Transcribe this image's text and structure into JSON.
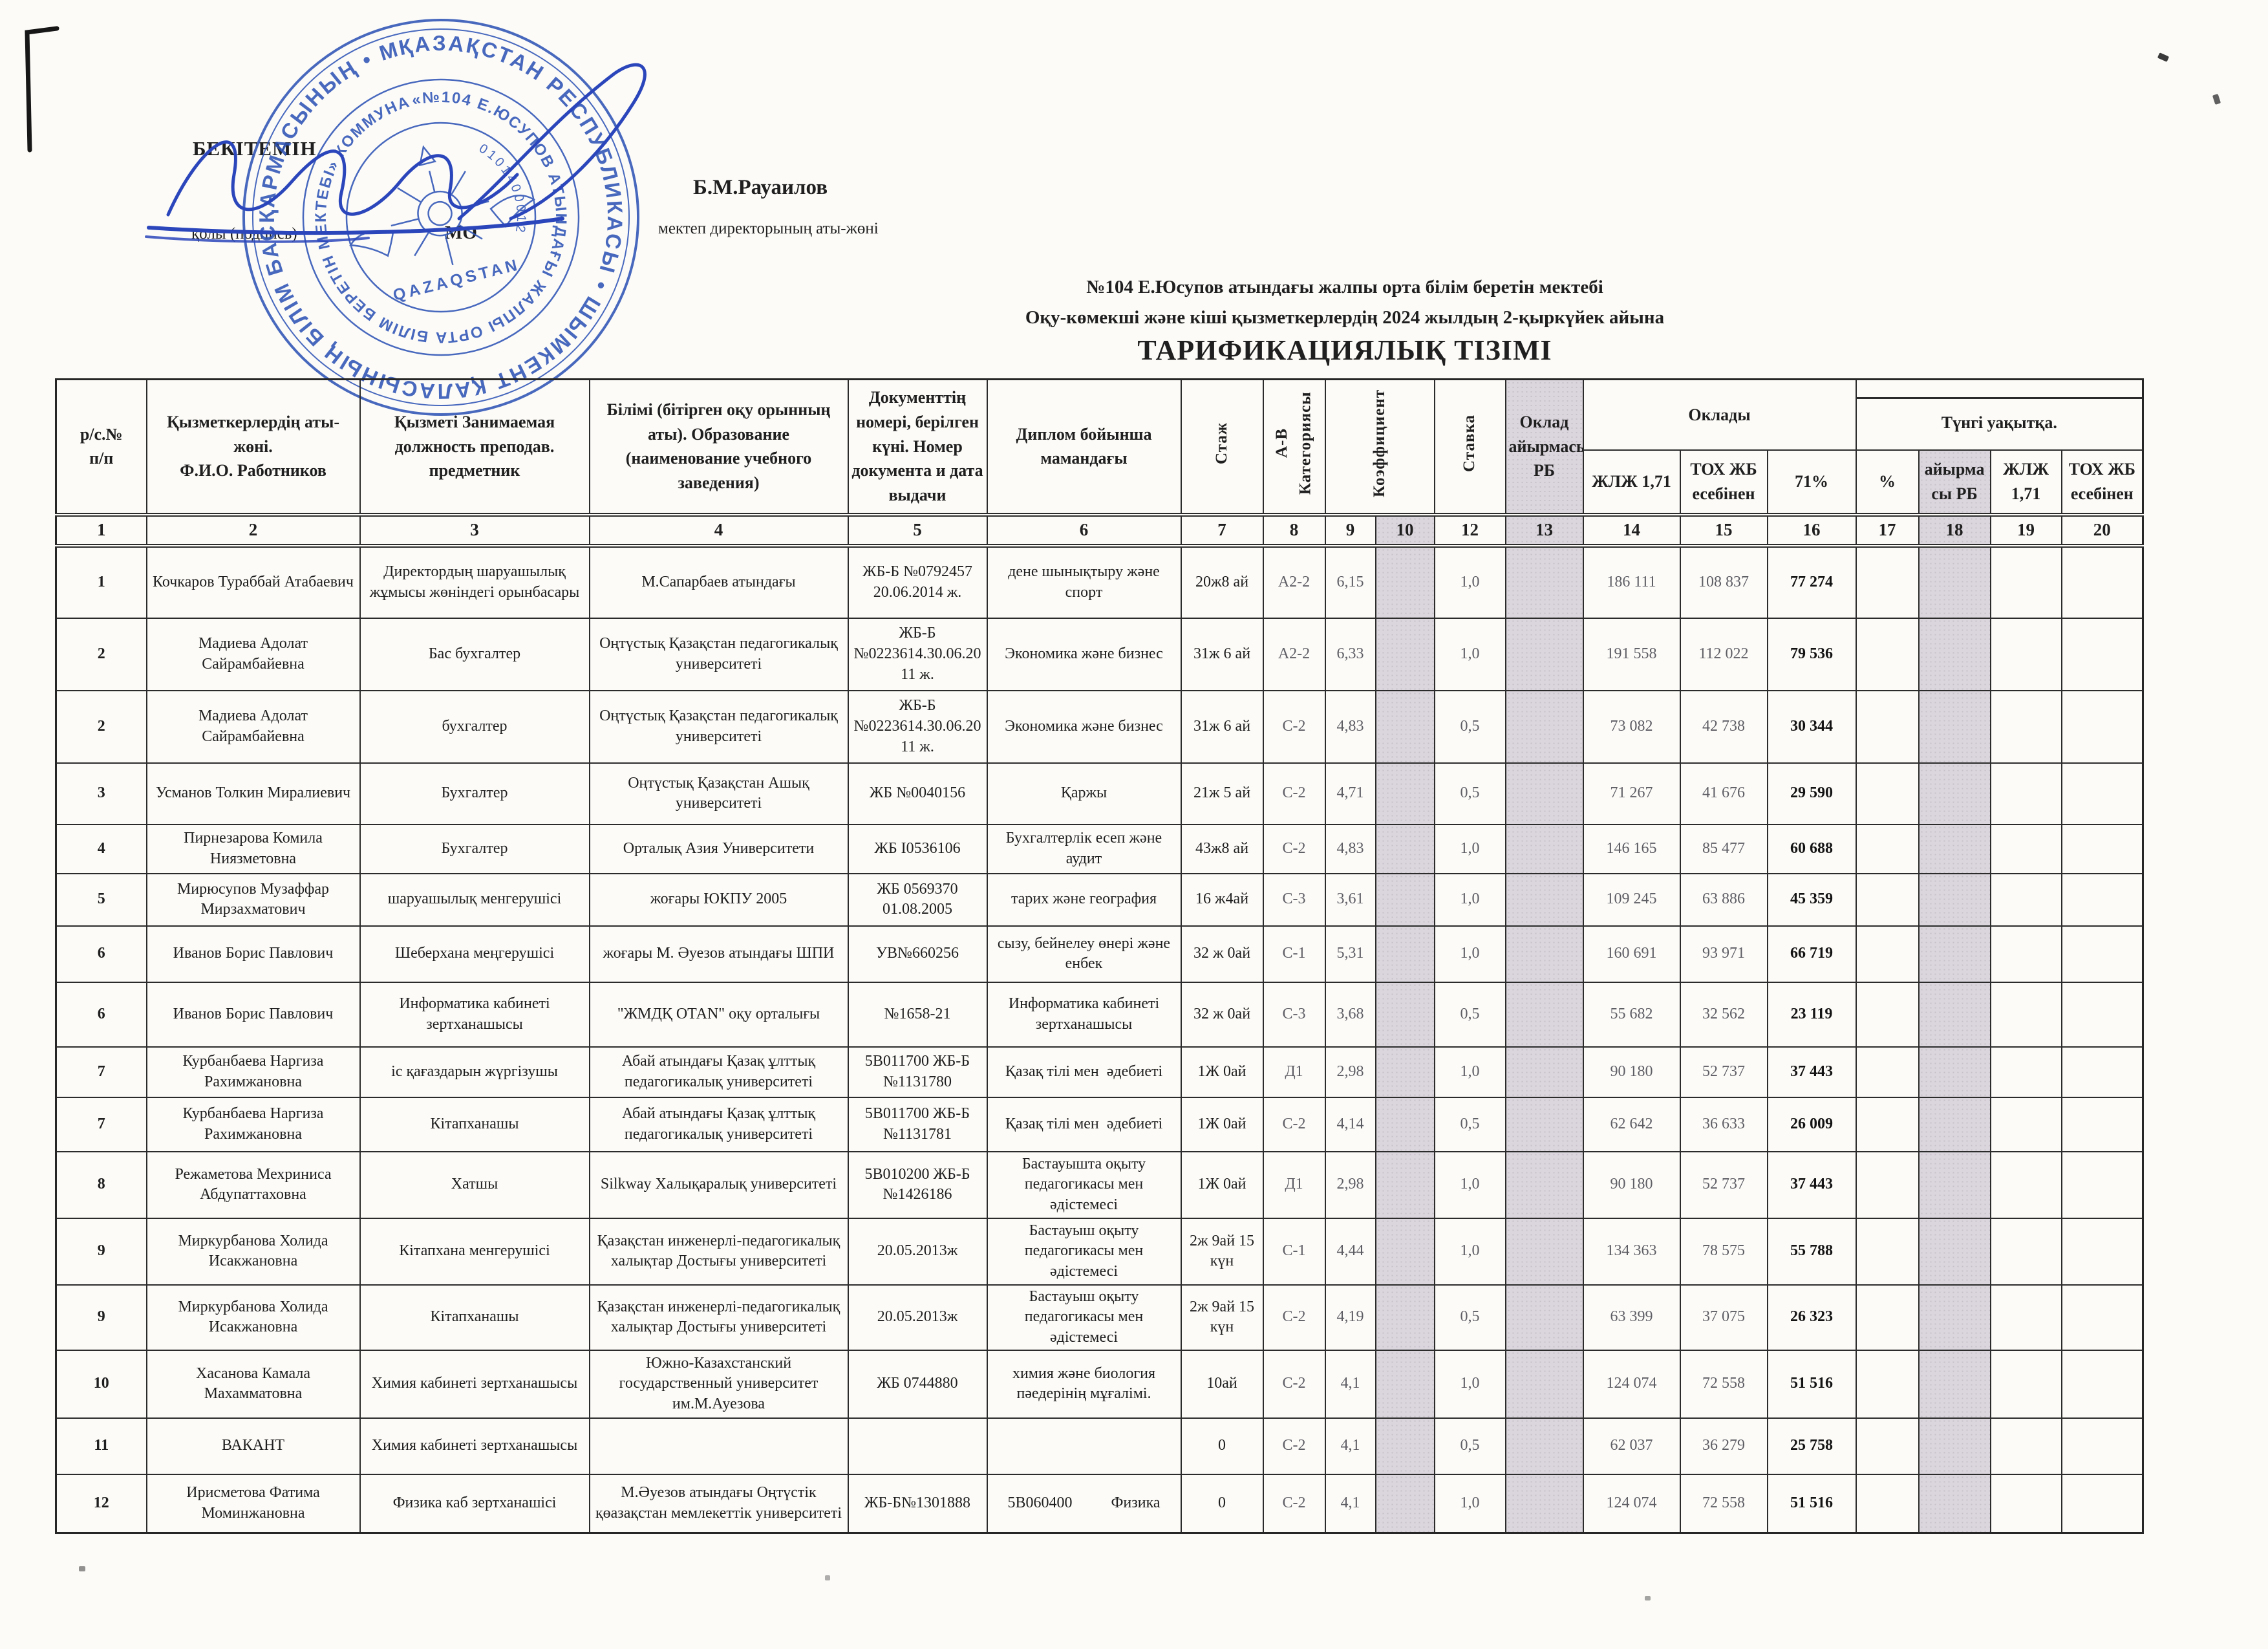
{
  "approval": {
    "approve_label": "БЕКІТЕМІН",
    "signature_caption": "қолы (подпись)",
    "stamp_caption": "МО",
    "director_name": "Б.М.Рауаилов",
    "director_caption": "мектеп директорының аты-жөні"
  },
  "stamp": {
    "color": "#2f54b5",
    "ring_text_outer": "ҚАЗАҚСТАН РЕСПУБЛИКАСЫ • ШЫМКЕНТ ҚАЛАСЫНЫҢ БІЛІМ БАСҚАРМАСЫНЫҢ • МЕМЛЕКЕТТІК МЕКЕМЕСІ •",
    "ring_text_inner": "«№104 Е.ЮСУПОВ АТЫНДАҒЫ ЖАЛПЫ ОРТА БІЛІМ БЕРЕТІН МЕКТЕБІ» КОММУНАЛДЫҚ МЕМЛЕКЕТТІК МЕКЕМЕСІ",
    "ring_number": "0101400012",
    "center_label": "QAZAQSTAN"
  },
  "title": {
    "line1": "№104 Е.Юсупов атындағы жалпы орта білім беретін мектебі",
    "line2": "Оқу-көмекші және кіші қызметкерлердің  2024 жылдың  2-қыркүйек  айына",
    "line3": "ТАРИФИКАЦИЯЛЫҚ ТІЗІМІ"
  },
  "table": {
    "headers": {
      "col1": "р/с.№\nп/п",
      "col2": "Қызметкерлердің аты-жөні.\nФ.И.О. Работников",
      "col3": "Қызметі Занимаемая должность преподав. предметник",
      "col4": "Білімі (бітірген оқу орынның аты). Образование (наименование учебного заведения)",
      "col5": "Документтің номері, берілген күні.  Номер документа  и дата выдачи",
      "col6": "Диплом бойынша мамандағы",
      "col7": "Стаж",
      "col8": "А-В Категориясы",
      "col9": "Коэффициент",
      "col12": "Ставка",
      "col13": "Оклад айырмасы РБ",
      "salary_group": "Оклады",
      "salary_sub_1": "ЖЛЖ 1,71",
      "salary_sub_2": "ТОХ  ЖБ есебінен",
      "salary_sub_3": "71%",
      "night_group": "Түнгі уақытқа.",
      "night_sub_1": "%",
      "night_sub_2": "айырма сы РБ",
      "night_sub_3": "ЖЛЖ 1,71",
      "night_sub_4": "ТОХ  ЖБ есебінен"
    },
    "column_numbers": [
      "1",
      "2",
      "3",
      "4",
      "5",
      "6",
      "7",
      "8",
      "9",
      "10",
      "12",
      "13",
      "14",
      "15",
      "16",
      "17",
      "18",
      "19",
      "20"
    ],
    "rows": [
      {
        "no": "1",
        "name": "Кочкаров Тураббай Атабаевич",
        "position": "Директордың шаруашылық жұмысы жөніндегі орынбасары",
        "education": "М.Сапарбаев атындағы",
        "document": "ЖБ-Б №0792457 20.06.2014 ж.",
        "diploma": "дене шынықтыру және спорт",
        "experience": "20ж8 ай",
        "category": "А2-2",
        "coefficient": "6,15",
        "c10": "",
        "rate": "1,0",
        "c13": "",
        "s14": "186 111",
        "s15": "108 837",
        "s16": "77 274",
        "n17": "",
        "n18": "",
        "n19": "",
        "n20": ""
      },
      {
        "no": "2",
        "name": "Мадиева Адолат Сайрамбайевна",
        "position": "Бас бухгалтер",
        "education": "Оңтүстық Қазақстан педагогикалық университеті",
        "document": "ЖБ-Б №0223614.30.06.2011 ж.",
        "diploma": "Экономика және бизнес",
        "experience": "31ж 6 ай",
        "category": "А2-2",
        "coefficient": "6,33",
        "c10": "",
        "rate": "1,0",
        "c13": "",
        "s14": "191 558",
        "s15": "112 022",
        "s16": "79 536",
        "n17": "",
        "n18": "",
        "n19": "",
        "n20": ""
      },
      {
        "no": "2",
        "name": "Мадиева Адолат Сайрамбайевна",
        "position": "бухгалтер",
        "education": "Оңтүстық Қазақстан педагогикалық университеті",
        "document": "ЖБ-Б №0223614.30.06.2011 ж.",
        "diploma": "Экономика және бизнес",
        "experience": "31ж 6 ай",
        "category": "С-2",
        "coefficient": "4,83",
        "c10": "",
        "rate": "0,5",
        "c13": "",
        "s14": "73 082",
        "s15": "42 738",
        "s16": "30 344",
        "n17": "",
        "n18": "",
        "n19": "",
        "n20": ""
      },
      {
        "no": "3",
        "name": "Усманов Толкин Миралиевич",
        "position": "Бухгалтер",
        "education": "Оңтүстық Қазақстан Ашық университеті",
        "document": "ЖБ №0040156",
        "diploma": "Қаржы",
        "experience": "21ж 5 ай",
        "category": "С-2",
        "coefficient": "4,71",
        "c10": "",
        "rate": "0,5",
        "c13": "",
        "s14": "71 267",
        "s15": "41 676",
        "s16": "29 590",
        "n17": "",
        "n18": "",
        "n19": "",
        "n20": ""
      },
      {
        "no": "4",
        "name": "Пирнезарова Комила Ниязметовна",
        "position": "Бухгалтер",
        "education": "Орталық Азия Университети",
        "document": "ЖБ І0536106",
        "diploma": "Бухгалтерлік есеп және аудит",
        "experience": "43ж8 ай",
        "category": "С-2",
        "coefficient": "4,83",
        "c10": "",
        "rate": "1,0",
        "c13": "",
        "s14": "146 165",
        "s15": "85 477",
        "s16": "60 688",
        "n17": "",
        "n18": "",
        "n19": "",
        "n20": ""
      },
      {
        "no": "5",
        "name": "Мирюсупов Музаффар Мирзахматович",
        "position": "шаруашылық менгерушісі",
        "education": "жоғары ЮКПУ 2005",
        "document": "ЖБ 0569370 01.08.2005",
        "diploma": "тарих және география",
        "experience": "16 ж4ай",
        "category": "С-3",
        "coefficient": "3,61",
        "c10": "",
        "rate": "1,0",
        "c13": "",
        "s14": "109 245",
        "s15": "63 886",
        "s16": "45 359",
        "n17": "",
        "n18": "",
        "n19": "",
        "n20": ""
      },
      {
        "no": "6",
        "name": "Иванов Борис Павлович",
        "position": "Шеберхана меңгерушісі",
        "education": "жоғары М. Әуезов атындағы ШПИ",
        "document": "УВ№660256",
        "diploma": "сызу, бейнелеу өнері және енбек",
        "experience": "32 ж 0ай",
        "category": "С-1",
        "coefficient": "5,31",
        "c10": "",
        "rate": "1,0",
        "c13": "",
        "s14": "160 691",
        "s15": "93 971",
        "s16": "66 719",
        "n17": "",
        "n18": "",
        "n19": "",
        "n20": ""
      },
      {
        "no": "6",
        "name": "Иванов Борис Павлович",
        "position": "Информатика кабинеті зертханашысы",
        "education": "\"ЖМДҚ ОТАN\" оқу орталығы",
        "document": "№1658-21",
        "diploma": "Информатика кабинеті зертханашысы",
        "experience": "32 ж 0ай",
        "category": "С-3",
        "coefficient": "3,68",
        "c10": "",
        "rate": "0,5",
        "c13": "",
        "s14": "55 682",
        "s15": "32 562",
        "s16": "23 119",
        "n17": "",
        "n18": "",
        "n19": "",
        "n20": ""
      },
      {
        "no": "7",
        "name": "Курбанбаева Наргиза Рахимжановна",
        "position": "іс қағаздарын жүргізушы",
        "education": "Абай атындағы Қазақ ұлттық педагогикалық университеті",
        "document": "5В011700 ЖБ-Б №1131780",
        "diploma": "Қазақ тілі мен  әдебиеті",
        "experience": "1Ж 0ай",
        "category": "Д1",
        "coefficient": "2,98",
        "c10": "",
        "rate": "1,0",
        "c13": "",
        "s14": "90 180",
        "s15": "52 737",
        "s16": "37 443",
        "n17": "",
        "n18": "",
        "n19": "",
        "n20": ""
      },
      {
        "no": "7",
        "name": "Курбанбаева Наргиза Рахимжановна",
        "position": "Кітапханашы",
        "education": "Абай атындағы Қазақ ұлттық педагогикалық университеті",
        "document": "5В011700 ЖБ-Б №1131781",
        "diploma": "Қазақ тілі мен  әдебиеті",
        "experience": "1Ж 0ай",
        "category": "С-2",
        "coefficient": "4,14",
        "c10": "",
        "rate": "0,5",
        "c13": "",
        "s14": "62 642",
        "s15": "36 633",
        "s16": "26 009",
        "n17": "",
        "n18": "",
        "n19": "",
        "n20": ""
      },
      {
        "no": "8",
        "name": "Режаметова Мехриниса Абдупаттаховна",
        "position": "Хатшы",
        "education": "Silkway Халықаралық университеті",
        "document": "5В010200 ЖБ-Б №1426186",
        "diploma": "Бастауышта оқыту педагогикасы мен әдістемесі",
        "experience": "1Ж 0ай",
        "category": "Д1",
        "coefficient": "2,98",
        "c10": "",
        "rate": "1,0",
        "c13": "",
        "s14": "90 180",
        "s15": "52 737",
        "s16": "37 443",
        "n17": "",
        "n18": "",
        "n19": "",
        "n20": ""
      },
      {
        "no": "9",
        "name": "Миркурбанова Холида Исакжановна",
        "position": "Кітапхана менгерушісі",
        "education": "Қазақстан инженерлі-педагогикалық халықтар Достығы университеті",
        "document": "20.05.2013ж",
        "diploma": "Бастауыш оқыту педагогикасы мен әдістемесі",
        "experience": "2ж 9ай 15 күн",
        "category": "С-1",
        "coefficient": "4,44",
        "c10": "",
        "rate": "1,0",
        "c13": "",
        "s14": "134 363",
        "s15": "78 575",
        "s16": "55 788",
        "n17": "",
        "n18": "",
        "n19": "",
        "n20": ""
      },
      {
        "no": "9",
        "name": "Миркурбанова Холида Исакжановна",
        "position": "Кітапханашы",
        "education": "Қазақстан инженерлі-педагогикалық халықтар Достығы университеті",
        "document": "20.05.2013ж",
        "diploma": "Бастауыш оқыту педагогикасы мен әдістемесі",
        "experience": "2ж 9ай 15 күн",
        "category": "С-2",
        "coefficient": "4,19",
        "c10": "",
        "rate": "0,5",
        "c13": "",
        "s14": "63 399",
        "s15": "37 075",
        "s16": "26 323",
        "n17": "",
        "n18": "",
        "n19": "",
        "n20": ""
      },
      {
        "no": "10",
        "name": "Хасанова Камала Махамматовна",
        "position": "Химия кабинеті зертханашысы",
        "education": "Южно-Казахстанский государственный университет им.М.Ауезова",
        "document": "ЖБ 0744880",
        "diploma": "химия және биология пәедерінің мұғалімі.",
        "experience": "10ай",
        "category": "С-2",
        "coefficient": "4,1",
        "c10": "",
        "rate": "1,0",
        "c13": "",
        "s14": "124 074",
        "s15": "72 558",
        "s16": "51 516",
        "n17": "",
        "n18": "",
        "n19": "",
        "n20": ""
      },
      {
        "no": "11",
        "name": "ВАКАНТ",
        "position": "Химия кабинеті зертханашысы",
        "education": "",
        "document": "",
        "diploma": "",
        "experience": "0",
        "category": "С-2",
        "coefficient": "4,1",
        "c10": "",
        "rate": "0,5",
        "c13": "",
        "s14": "62 037",
        "s15": "36 279",
        "s16": "25 758",
        "n17": "",
        "n18": "",
        "n19": "",
        "n20": ""
      },
      {
        "no": "12",
        "name": "Ирисметова Фатима Моминжановна",
        "position": "Физика каб зертханашісі",
        "education": "М.Әуезов атындағы Оңтүстік қөазақстан мемлекеттік университеті",
        "document": "ЖБ-Б№1301888",
        "diploma": "5В060400          Физика",
        "experience": "0",
        "category": "С-2",
        "coefficient": "4,1",
        "c10": "",
        "rate": "1,0",
        "c13": "",
        "s14": "124 074",
        "s15": "72 558",
        "s16": "51 516",
        "n17": "",
        "n18": "",
        "n19": "",
        "n20": ""
      }
    ]
  }
}
